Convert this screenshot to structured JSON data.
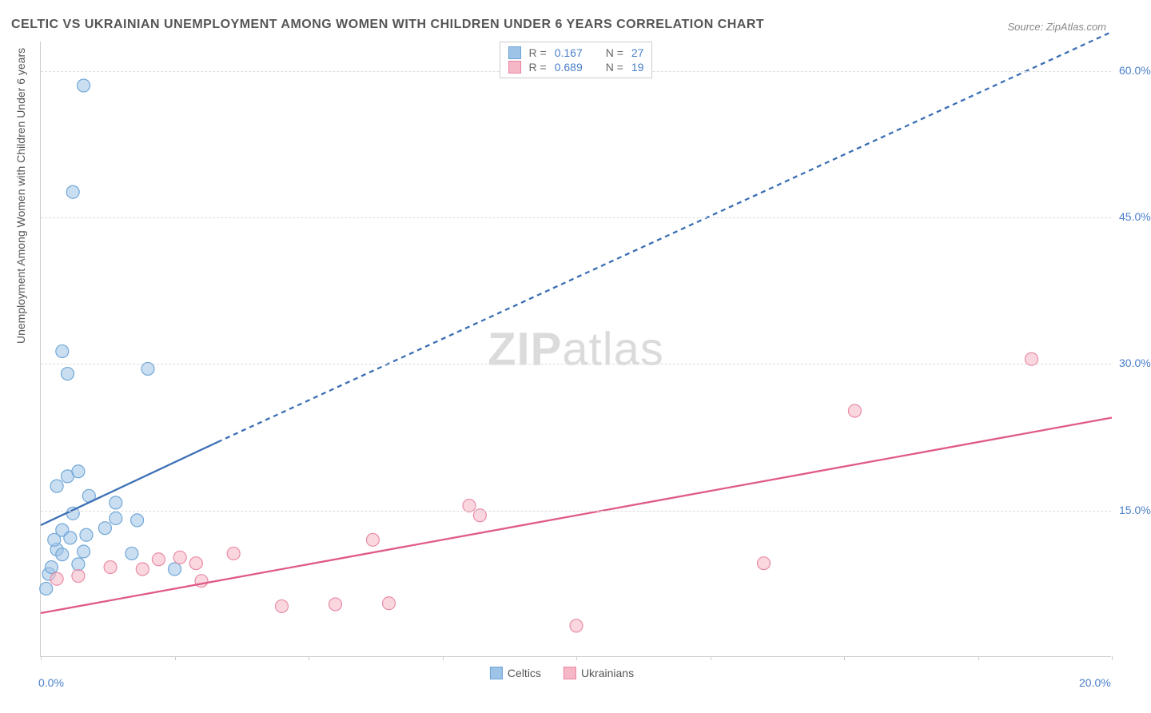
{
  "title": "CELTIC VS UKRAINIAN UNEMPLOYMENT AMONG WOMEN WITH CHILDREN UNDER 6 YEARS CORRELATION CHART",
  "source": "Source: ZipAtlas.com",
  "watermark_left": "ZIP",
  "watermark_right": "atlas",
  "y_axis_label": "Unemployment Among Women with Children Under 6 years",
  "chart": {
    "type": "scatter",
    "background_color": "#ffffff",
    "grid_color": "#dddddd",
    "axis_color": "#cccccc",
    "tick_label_color": "#4a7fc9",
    "xlim": [
      0,
      20
    ],
    "ylim": [
      0,
      63
    ],
    "x_ticks": [
      0,
      2.5,
      5,
      7.5,
      10,
      12.5,
      15,
      17.5,
      20
    ],
    "x_tick_labels": {
      "0": "0.0%",
      "20": "20.0%"
    },
    "y_ticks": [
      15,
      30,
      45,
      60
    ],
    "y_tick_labels": {
      "15": "15.0%",
      "30": "30.0%",
      "45": "45.0%",
      "60": "60.0%"
    },
    "marker_radius": 8,
    "marker_opacity": 0.55,
    "stroke_opacity": 0.95,
    "series": [
      {
        "name": "Celtics",
        "color_fill": "#9dc3e6",
        "color_stroke": "#6ba3d6",
        "r_label": "R = ",
        "r_value": "0.167",
        "n_label": "N = ",
        "n_value": "27",
        "trend": {
          "solid": {
            "x1": 0,
            "y1": 13.5,
            "x2": 3.3,
            "y2": 22
          },
          "dashed": {
            "x1": 3.3,
            "y1": 22,
            "x2": 20,
            "y2": 64
          },
          "color": "#3b6fb5",
          "width": 2.3,
          "dash": "6 5"
        },
        "points": [
          [
            0.1,
            7.0
          ],
          [
            0.15,
            8.5
          ],
          [
            0.2,
            9.2
          ],
          [
            0.3,
            11.0
          ],
          [
            0.25,
            12.0
          ],
          [
            0.4,
            10.5
          ],
          [
            0.4,
            13.0
          ],
          [
            0.55,
            12.2
          ],
          [
            0.6,
            14.7
          ],
          [
            0.7,
            9.5
          ],
          [
            0.8,
            10.8
          ],
          [
            0.85,
            12.5
          ],
          [
            0.3,
            17.5
          ],
          [
            0.5,
            18.5
          ],
          [
            0.7,
            19.0
          ],
          [
            0.9,
            16.5
          ],
          [
            1.2,
            13.2
          ],
          [
            1.4,
            14.2
          ],
          [
            1.4,
            15.8
          ],
          [
            1.7,
            10.6
          ],
          [
            1.8,
            14.0
          ],
          [
            2.0,
            29.5
          ],
          [
            0.4,
            31.3
          ],
          [
            0.5,
            29.0
          ],
          [
            2.5,
            9.0
          ],
          [
            0.6,
            47.6
          ],
          [
            0.8,
            58.5
          ]
        ]
      },
      {
        "name": "Ukrainians",
        "color_fill": "#f5b6c5",
        "color_stroke": "#e886a2",
        "r_label": "R = ",
        "r_value": "0.689",
        "n_label": "N = ",
        "n_value": "19",
        "trend": {
          "solid": {
            "x1": 0,
            "y1": 4.5,
            "x2": 20,
            "y2": 24.5
          },
          "color": "#e05a87",
          "width": 2.3
        },
        "points": [
          [
            0.3,
            8.0
          ],
          [
            0.7,
            8.3
          ],
          [
            1.3,
            9.2
          ],
          [
            1.9,
            9.0
          ],
          [
            2.2,
            10.0
          ],
          [
            2.6,
            10.2
          ],
          [
            2.9,
            9.6
          ],
          [
            3.0,
            7.8
          ],
          [
            3.6,
            10.6
          ],
          [
            4.5,
            5.2
          ],
          [
            5.5,
            5.4
          ],
          [
            6.2,
            12.0
          ],
          [
            6.5,
            5.5
          ],
          [
            8.0,
            15.5
          ],
          [
            8.2,
            14.5
          ],
          [
            10.0,
            3.2
          ],
          [
            13.5,
            9.6
          ],
          [
            15.2,
            25.2
          ],
          [
            18.5,
            30.5
          ]
        ]
      }
    ]
  }
}
